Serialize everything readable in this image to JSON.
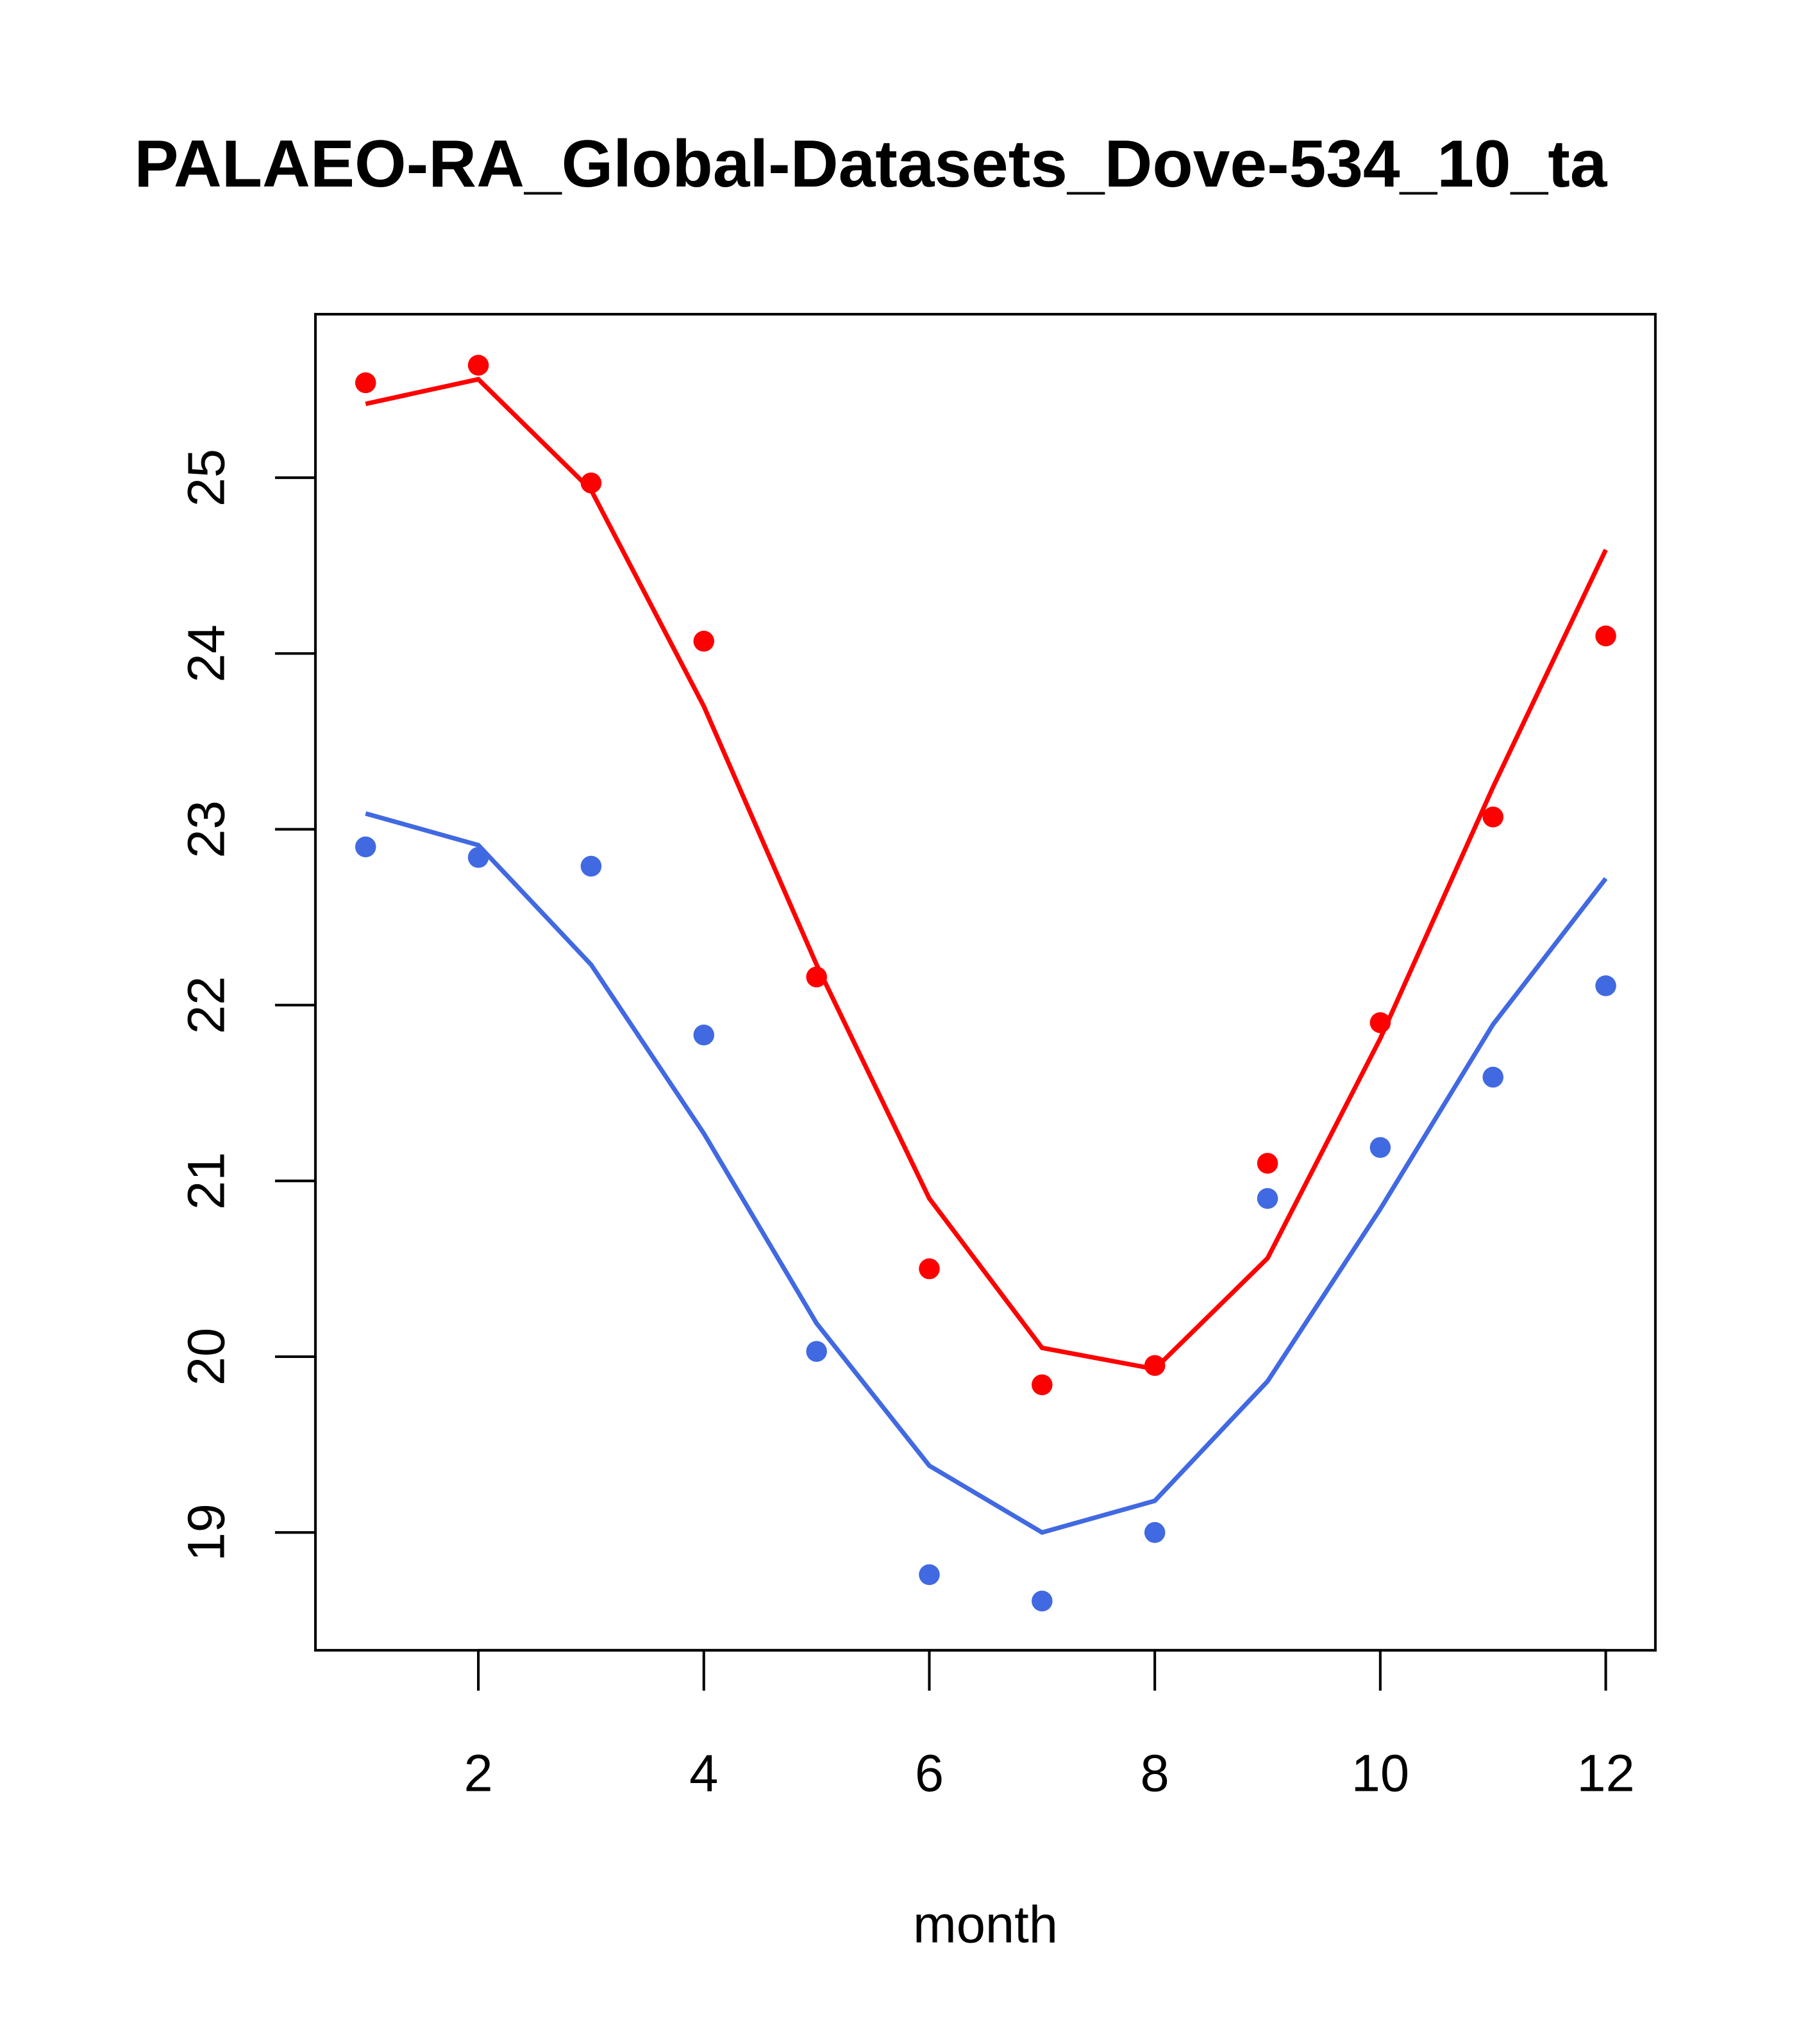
{
  "chart_data": {
    "type": "line",
    "title": "PALAEO-RA_Global-Datasets_Dove-534_10_ta",
    "xlabel": "month",
    "ylabel": "",
    "xlim": [
      0.555,
      12.44
    ],
    "ylim": [
      18.33,
      25.93
    ],
    "xticks": [
      2,
      4,
      6,
      8,
      10,
      12
    ],
    "yticks": [
      19,
      20,
      21,
      22,
      23,
      24,
      25
    ],
    "grid": false,
    "x": [
      1,
      2,
      3,
      4,
      5,
      6,
      7,
      8,
      9,
      10,
      11,
      12
    ],
    "series": [
      {
        "name": "red-points",
        "kind": "points",
        "color": "#ff0000",
        "values": [
          25.54,
          25.64,
          24.97,
          24.07,
          22.16,
          20.5,
          19.84,
          19.95,
          21.1,
          21.9,
          23.07,
          24.1
        ]
      },
      {
        "name": "red-line",
        "kind": "line",
        "color": "#ff0000",
        "values": [
          25.42,
          25.56,
          24.93,
          23.7,
          22.23,
          20.9,
          20.05,
          19.93,
          20.56,
          21.81,
          23.24,
          24.59
        ]
      },
      {
        "name": "blue-points",
        "kind": "points",
        "color": "#4169e1",
        "values": [
          22.9,
          22.84,
          22.79,
          21.83,
          20.03,
          18.76,
          18.61,
          19.0,
          20.9,
          21.19,
          21.59,
          22.11
        ]
      },
      {
        "name": "blue-line",
        "kind": "line",
        "color": "#4169e1",
        "values": [
          23.09,
          22.91,
          22.23,
          21.27,
          20.19,
          19.38,
          19.0,
          19.18,
          19.86,
          20.84,
          21.89,
          22.72
        ]
      }
    ]
  }
}
